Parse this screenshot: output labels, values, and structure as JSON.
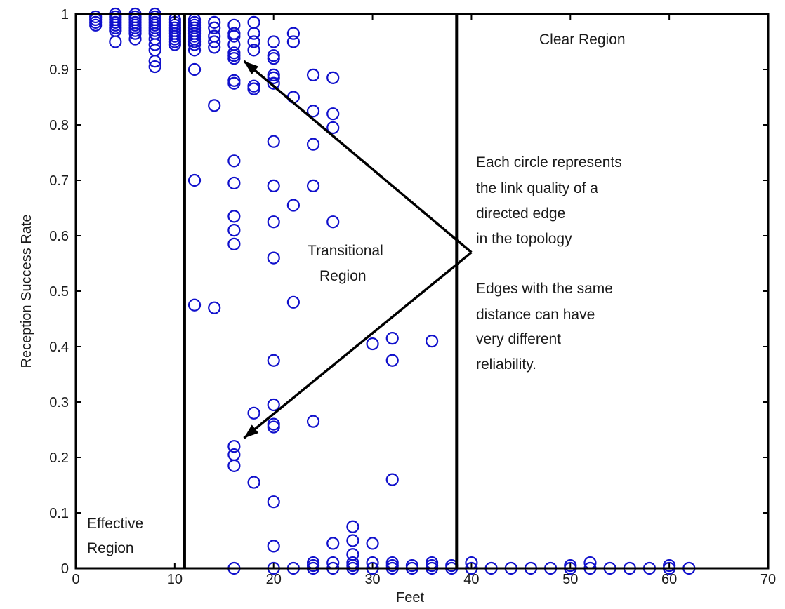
{
  "chart_data": {
    "type": "scatter",
    "title": "",
    "xlabel": "Feet",
    "ylabel": "Reception Success Rate",
    "xlim": [
      0,
      70
    ],
    "ylim": [
      0,
      1
    ],
    "x_ticks": [
      "0",
      "10",
      "20",
      "30",
      "40",
      "50",
      "60",
      "70"
    ],
    "y_ticks": [
      "0",
      "0.1",
      "0.2",
      "0.3",
      "0.4",
      "0.5",
      "0.6",
      "0.7",
      "0.8",
      "0.9",
      "1"
    ],
    "grid": false,
    "marker": "circle",
    "marker_color": "#1010cc",
    "line_color": "#000000",
    "region_boundaries_x": [
      11,
      38.5
    ],
    "annotations": {
      "clear_region": "Clear Region",
      "transitional_region_line1": "Transitional",
      "transitional_region_line2": "Region",
      "effective_region_line1": "Effective",
      "effective_region_line2": "Region",
      "note_lines": [
        "Each circle represents",
        "the link quality of a",
        "directed edge",
        "in the topology",
        "",
        "Edges with the same",
        "distance can have",
        "very different",
        "reliability."
      ]
    },
    "arrows": [
      {
        "from": [
          40,
          0.57
        ],
        "to": [
          17,
          0.915
        ]
      },
      {
        "from": [
          40,
          0.57
        ],
        "to": [
          17,
          0.235
        ]
      }
    ],
    "points": [
      [
        2,
        0.98
      ],
      [
        2,
        0.985
      ],
      [
        2,
        0.99
      ],
      [
        2,
        0.995
      ],
      [
        4,
        0.95
      ],
      [
        4,
        0.97
      ],
      [
        4,
        0.975
      ],
      [
        4,
        0.98
      ],
      [
        4,
        0.985
      ],
      [
        4,
        0.99
      ],
      [
        4,
        0.995
      ],
      [
        4,
        1.0
      ],
      [
        6,
        0.955
      ],
      [
        6,
        0.965
      ],
      [
        6,
        0.97
      ],
      [
        6,
        0.975
      ],
      [
        6,
        0.98
      ],
      [
        6,
        0.985
      ],
      [
        6,
        0.99
      ],
      [
        6,
        0.995
      ],
      [
        6,
        1.0
      ],
      [
        8,
        0.905
      ],
      [
        8,
        0.915
      ],
      [
        8,
        0.935
      ],
      [
        8,
        0.945
      ],
      [
        8,
        0.955
      ],
      [
        8,
        0.965
      ],
      [
        8,
        0.97
      ],
      [
        8,
        0.975
      ],
      [
        8,
        0.98
      ],
      [
        8,
        0.985
      ],
      [
        8,
        0.99
      ],
      [
        8,
        0.995
      ],
      [
        8,
        1.0
      ],
      [
        10,
        0.945
      ],
      [
        10,
        0.95
      ],
      [
        10,
        0.955
      ],
      [
        10,
        0.96
      ],
      [
        10,
        0.965
      ],
      [
        10,
        0.97
      ],
      [
        10,
        0.975
      ],
      [
        10,
        0.98
      ],
      [
        10,
        0.985
      ],
      [
        10,
        0.99
      ],
      [
        12,
        0.9
      ],
      [
        12,
        0.935
      ],
      [
        12,
        0.945
      ],
      [
        12,
        0.95
      ],
      [
        12,
        0.955
      ],
      [
        12,
        0.96
      ],
      [
        12,
        0.965
      ],
      [
        12,
        0.97
      ],
      [
        12,
        0.975
      ],
      [
        12,
        0.98
      ],
      [
        12,
        0.985
      ],
      [
        12,
        0.99
      ],
      [
        12,
        0.7
      ],
      [
        12,
        0.475
      ],
      [
        14,
        0.94
      ],
      [
        14,
        0.95
      ],
      [
        14,
        0.96
      ],
      [
        14,
        0.975
      ],
      [
        14,
        0.985
      ],
      [
        14,
        0.835
      ],
      [
        14,
        0.47
      ],
      [
        16,
        0.92
      ],
      [
        16,
        0.925
      ],
      [
        16,
        0.93
      ],
      [
        16,
        0.945
      ],
      [
        16,
        0.96
      ],
      [
        16,
        0.965
      ],
      [
        16,
        0.98
      ],
      [
        16,
        0.875
      ],
      [
        16,
        0.88
      ],
      [
        16,
        0.735
      ],
      [
        16,
        0.695
      ],
      [
        16,
        0.635
      ],
      [
        16,
        0.61
      ],
      [
        16,
        0.585
      ],
      [
        16,
        0.22
      ],
      [
        16,
        0.205
      ],
      [
        16,
        0.185
      ],
      [
        16,
        0.0
      ],
      [
        18,
        0.935
      ],
      [
        18,
        0.95
      ],
      [
        18,
        0.965
      ],
      [
        18,
        0.985
      ],
      [
        18,
        0.865
      ],
      [
        18,
        0.87
      ],
      [
        18,
        0.28
      ],
      [
        18,
        0.155
      ],
      [
        20,
        0.95
      ],
      [
        20,
        0.925
      ],
      [
        20,
        0.92
      ],
      [
        20,
        0.89
      ],
      [
        20,
        0.885
      ],
      [
        20,
        0.875
      ],
      [
        20,
        0.77
      ],
      [
        20,
        0.69
      ],
      [
        20,
        0.625
      ],
      [
        20,
        0.56
      ],
      [
        20,
        0.375
      ],
      [
        20,
        0.295
      ],
      [
        20,
        0.26
      ],
      [
        20,
        0.255
      ],
      [
        20,
        0.12
      ],
      [
        20,
        0.04
      ],
      [
        20,
        0.0
      ],
      [
        22,
        0.965
      ],
      [
        22,
        0.95
      ],
      [
        22,
        0.85
      ],
      [
        22,
        0.655
      ],
      [
        22,
        0.48
      ],
      [
        22,
        0.0
      ],
      [
        24,
        0.89
      ],
      [
        24,
        0.825
      ],
      [
        24,
        0.765
      ],
      [
        24,
        0.69
      ],
      [
        24,
        0.265
      ],
      [
        24,
        0.01
      ],
      [
        24,
        0.005
      ],
      [
        24,
        0.0
      ],
      [
        26,
        0.885
      ],
      [
        26,
        0.82
      ],
      [
        26,
        0.795
      ],
      [
        26,
        0.625
      ],
      [
        26,
        0.045
      ],
      [
        26,
        0.01
      ],
      [
        26,
        0.0
      ],
      [
        28,
        0.075
      ],
      [
        28,
        0.05
      ],
      [
        28,
        0.025
      ],
      [
        28,
        0.01
      ],
      [
        28,
        0.005
      ],
      [
        28,
        0.0
      ],
      [
        30,
        0.405
      ],
      [
        30,
        0.045
      ],
      [
        30,
        0.01
      ],
      [
        30,
        0.0
      ],
      [
        32,
        0.415
      ],
      [
        32,
        0.375
      ],
      [
        32,
        0.16
      ],
      [
        32,
        0.01
      ],
      [
        32,
        0.005
      ],
      [
        32,
        0.0
      ],
      [
        34,
        0.005
      ],
      [
        34,
        0.0
      ],
      [
        36,
        0.41
      ],
      [
        36,
        0.01
      ],
      [
        36,
        0.005
      ],
      [
        36,
        0.0
      ],
      [
        38,
        0.005
      ],
      [
        38,
        0.0
      ],
      [
        40,
        0.01
      ],
      [
        40,
        0.0
      ],
      [
        42,
        0.0
      ],
      [
        44,
        0.0
      ],
      [
        46,
        0.0
      ],
      [
        48,
        0.0
      ],
      [
        50,
        0.005
      ],
      [
        50,
        0.0
      ],
      [
        52,
        0.01
      ],
      [
        52,
        0.0
      ],
      [
        54,
        0.0
      ],
      [
        56,
        0.0
      ],
      [
        58,
        0.0
      ],
      [
        60,
        0.005
      ],
      [
        60,
        0.0
      ],
      [
        62,
        0.0
      ]
    ]
  }
}
